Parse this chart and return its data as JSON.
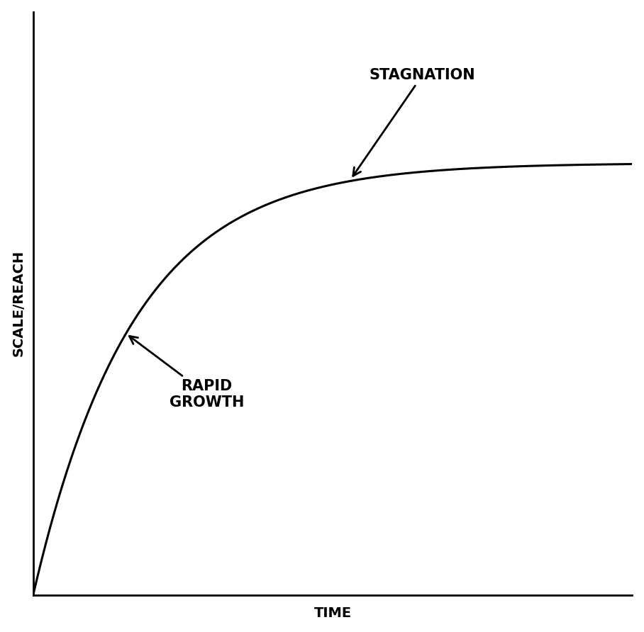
{
  "ylabel": "SCALE/REACH",
  "xlabel": "TIME",
  "curve_color": "#000000",
  "curve_linewidth": 2.2,
  "background_color": "#ffffff",
  "axis_linewidth": 2.0,
  "stagnation_label": "STAGNATION",
  "rapid_growth_label": "RAPID\nGROWTH",
  "ylabel_fontsize": 14,
  "xlabel_fontsize": 14,
  "annotation_fontsize": 15
}
